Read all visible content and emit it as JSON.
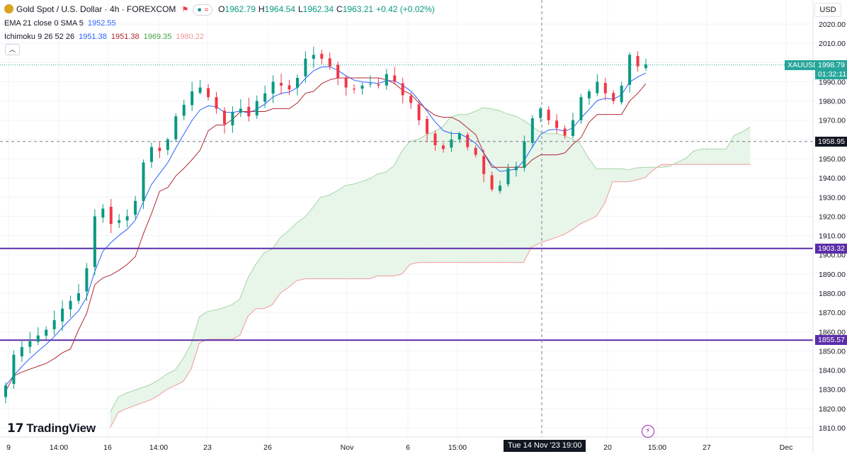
{
  "header": {
    "symbol_title": "Gold Spot / U.S. Dollar · 4h · FOREXCOM",
    "flag_icon": "flag-icon",
    "market_status": "≈",
    "ohlc": {
      "o_label": "O",
      "o": "1962.79",
      "h_label": "H",
      "h": "1964.54",
      "l_label": "L",
      "l": "1962.34",
      "c_label": "C",
      "c": "1963.21",
      "change": "+0.42 (+0.02%)"
    },
    "ema": {
      "label": "EMA 21 close 0 SMA 5",
      "value": "1952.55"
    },
    "ichimoku": {
      "label": "Ichimoku 9 26 52 26",
      "conversion": "1951.38",
      "base": "1951.38",
      "span_a": "1969.35",
      "span_b": "1980.22"
    },
    "currency": "USD"
  },
  "crosshair_time": "Tue 14 Nov '23   19:00",
  "price_tags": {
    "symbol": "XAUUSD",
    "last_price": "1998.79",
    "countdown": "01:32:11",
    "crosshair_price": "1958.95",
    "level_high": "1903.32",
    "level_low": "1855.57"
  },
  "branding": {
    "name": "TradingView"
  },
  "colors": {
    "up": "#089981",
    "down": "#f23645",
    "ema": "#2962ff",
    "base_line": "#b22833",
    "cloud_bull": "#e8f5e9",
    "cloud_bear": "#fde7e7",
    "level_line": "#5b2da8",
    "price_tag": "#26a69a"
  },
  "chart_data": {
    "type": "candlestick",
    "title": "Gold Spot / U.S. Dollar · 4h · FOREXCOM",
    "xlabel": "",
    "ylabel": "",
    "ylim": [
      1804,
      2030
    ],
    "y_ticks": [
      1810,
      1820,
      1830,
      1840,
      1850,
      1860,
      1870,
      1880,
      1890,
      1900,
      1910,
      1920,
      1930,
      1940,
      1950,
      1960,
      1970,
      1980,
      1990,
      2000,
      2010,
      2020
    ],
    "x_tick_labels": [
      "9",
      "14:00",
      "16",
      "14:00",
      "23",
      "26",
      "Nov",
      "6",
      "15:00",
      "20",
      "15:00",
      "27",
      "Dec"
    ],
    "horizontal_levels": [
      1903.32,
      1855.57
    ],
    "last_price": 1998.79,
    "crosshair_price": 1958.95,
    "series": [
      {
        "name": "XAUUSD",
        "kind": "ohlc",
        "close_path": [
          1832,
          1848,
          1852,
          1855,
          1858,
          1861,
          1866,
          1872,
          1876,
          1880,
          1893,
          1920,
          1924,
          1916,
          1918,
          1920,
          1928,
          1948,
          1956,
          1954,
          1960,
          1972,
          1978,
          1985,
          1987,
          1982,
          1976,
          1968,
          1974,
          1976,
          1972,
          1980,
          1984,
          1990,
          1988,
          1986,
          1992,
          2002,
          2004,
          2002,
          1998,
          1992,
          1987,
          1986,
          1988,
          1989,
          1988,
          1994,
          1990,
          1983,
          1979,
          1970,
          1963,
          1957,
          1955,
          1960,
          1963,
          1956,
          1952,
          1942,
          1934,
          1936,
          1945,
          1946,
          1959,
          1971,
          1976,
          1970,
          1966,
          1962,
          1970,
          1982,
          1985,
          1990,
          1984,
          1980,
          1988,
          2004,
          1998,
          1999
        ]
      },
      {
        "name": "EMA",
        "kind": "line"
      },
      {
        "name": "Ichimoku",
        "kind": "cloud"
      }
    ]
  }
}
